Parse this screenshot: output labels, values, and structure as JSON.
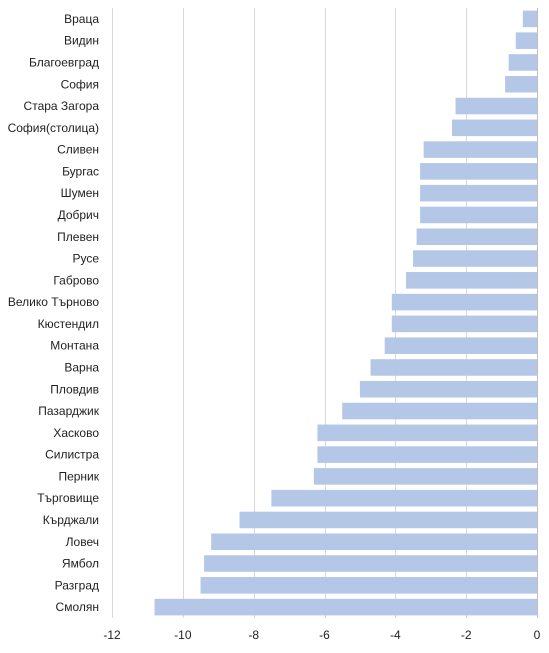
{
  "chart_data": {
    "type": "bar",
    "orientation": "horizontal",
    "categories": [
      "Враца",
      "Видин",
      "Благоевград",
      "София",
      "Стара Загора",
      "София(столица)",
      "Сливен",
      "Бургас",
      "Шумен",
      "Добрич",
      "Плевен",
      "Русе",
      "Габрово",
      "Велико Търново",
      "Кюстендил",
      "Монтана",
      "Варна",
      "Пловдив",
      "Пазарджик",
      "Хасково",
      "Силистра",
      "Перник",
      "Търговище",
      "Кърджали",
      "Ловеч",
      "Ямбол",
      "Разград",
      "Смолян"
    ],
    "values": [
      -0.4,
      -0.6,
      -0.8,
      -0.9,
      -2.3,
      -2.4,
      -3.2,
      -3.3,
      -3.3,
      -3.3,
      -3.4,
      -3.5,
      -3.7,
      -4.1,
      -4.1,
      -4.3,
      -4.7,
      -5.0,
      -5.5,
      -6.2,
      -6.2,
      -6.3,
      -7.5,
      -8.4,
      -9.2,
      -9.4,
      -9.5,
      -10.8
    ],
    "xlim": [
      -12,
      0
    ],
    "xticks": [
      "-12",
      "-10",
      "-8",
      "-6",
      "-4",
      "-2",
      "0"
    ],
    "grid": "vertical",
    "bar_color": "#b4c7e7",
    "legend": "none"
  }
}
